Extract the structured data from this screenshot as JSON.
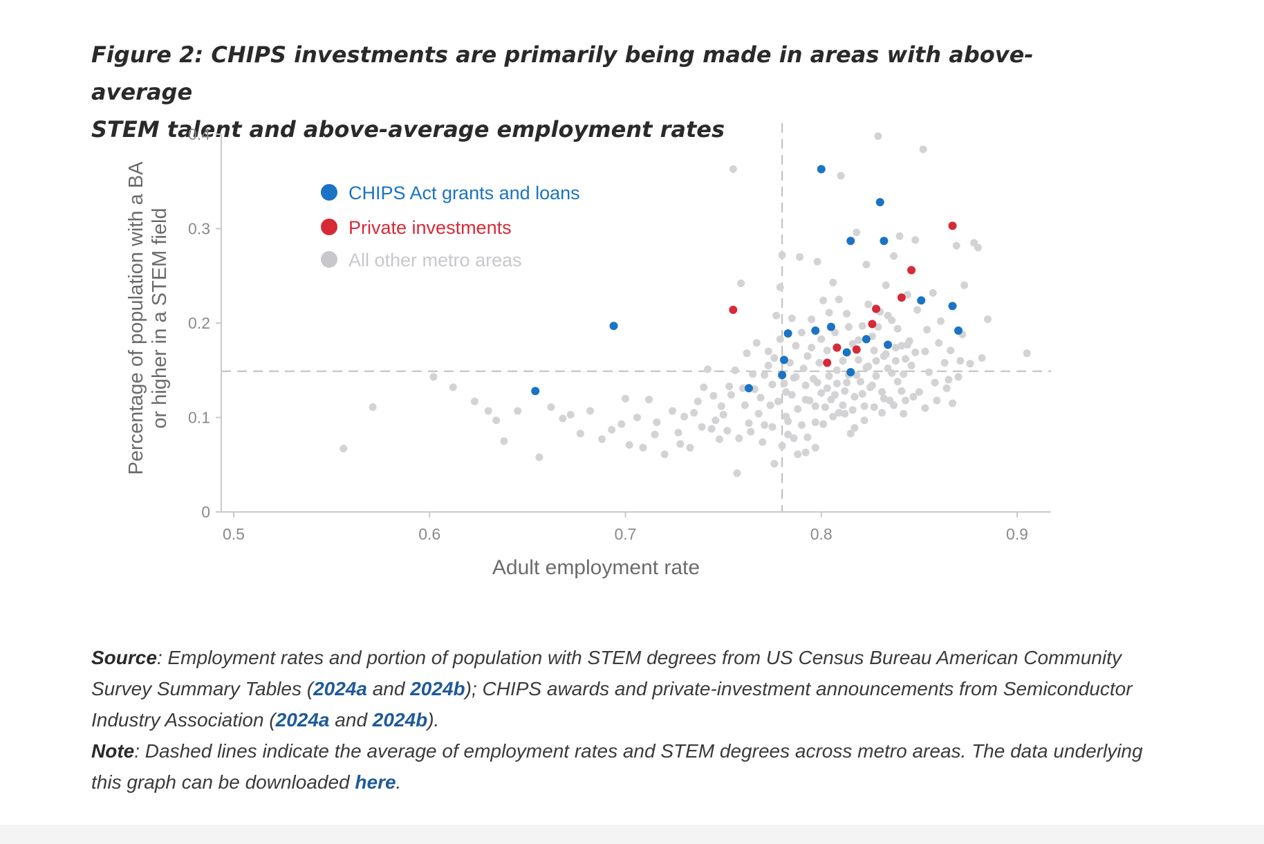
{
  "title_line1": "Figure 2: CHIPS investments are primarily being made in areas with above-average",
  "title_line2": "STEM talent and above-average employment rates",
  "chart_data": {
    "type": "scatter",
    "xlabel": "Adult employment rate",
    "ylabel_line1": "Percentage of population with a BA",
    "ylabel_line2": "or higher in a STEM field",
    "xlim": [
      0.495,
      0.92
    ],
    "ylim": [
      0,
      0.4
    ],
    "x_ticks": [
      0.5,
      0.6,
      0.7,
      0.8,
      0.9
    ],
    "x_tick_labels": [
      "0.5",
      "0.6",
      "0.7",
      "0.8",
      "0.9"
    ],
    "y_ticks": [
      0,
      0.1,
      0.2,
      0.3,
      0.4
    ],
    "y_tick_labels": [
      "0",
      "0.1",
      "0.2",
      "0.3",
      "0.4"
    ],
    "avg_x": 0.78,
    "avg_y": 0.149,
    "legend_position": "top-left",
    "series": [
      {
        "name": "CHIPS Act grants and loans",
        "color": "#1a73c4",
        "points": [
          [
            0.654,
            0.128
          ],
          [
            0.694,
            0.197
          ],
          [
            0.763,
            0.131
          ],
          [
            0.78,
            0.145
          ],
          [
            0.781,
            0.161
          ],
          [
            0.783,
            0.189
          ],
          [
            0.797,
            0.192
          ],
          [
            0.8,
            0.363
          ],
          [
            0.805,
            0.196
          ],
          [
            0.813,
            0.169
          ],
          [
            0.815,
            0.148
          ],
          [
            0.815,
            0.287
          ],
          [
            0.823,
            0.183
          ],
          [
            0.83,
            0.328
          ],
          [
            0.832,
            0.287
          ],
          [
            0.834,
            0.177
          ],
          [
            0.851,
            0.224
          ],
          [
            0.867,
            0.218
          ],
          [
            0.87,
            0.192
          ]
        ]
      },
      {
        "name": "Private investments",
        "color": "#d62a36",
        "points": [
          [
            0.755,
            0.214
          ],
          [
            0.803,
            0.158
          ],
          [
            0.808,
            0.174
          ],
          [
            0.818,
            0.172
          ],
          [
            0.826,
            0.199
          ],
          [
            0.828,
            0.215
          ],
          [
            0.841,
            0.227
          ],
          [
            0.846,
            0.256
          ],
          [
            0.867,
            0.303
          ]
        ]
      },
      {
        "name": "All other metro areas",
        "color": "#d3d3d6",
        "points": [
          [
            0.556,
            0.067
          ],
          [
            0.571,
            0.111
          ],
          [
            0.602,
            0.143
          ],
          [
            0.612,
            0.132
          ],
          [
            0.623,
            0.117
          ],
          [
            0.63,
            0.107
          ],
          [
            0.634,
            0.097
          ],
          [
            0.638,
            0.075
          ],
          [
            0.645,
            0.107
          ],
          [
            0.656,
            0.058
          ],
          [
            0.662,
            0.111
          ],
          [
            0.668,
            0.099
          ],
          [
            0.672,
            0.103
          ],
          [
            0.677,
            0.083
          ],
          [
            0.682,
            0.107
          ],
          [
            0.688,
            0.077
          ],
          [
            0.693,
            0.087
          ],
          [
            0.698,
            0.093
          ],
          [
            0.702,
            0.071
          ],
          [
            0.706,
            0.1
          ],
          [
            0.709,
            0.068
          ],
          [
            0.712,
            0.119
          ],
          [
            0.716,
            0.095
          ],
          [
            0.72,
            0.061
          ],
          [
            0.724,
            0.107
          ],
          [
            0.727,
            0.084
          ],
          [
            0.73,
            0.101
          ],
          [
            0.733,
            0.068
          ],
          [
            0.737,
            0.117
          ],
          [
            0.739,
            0.09
          ],
          [
            0.742,
            0.151
          ],
          [
            0.745,
            0.123
          ],
          [
            0.748,
            0.077
          ],
          [
            0.75,
            0.103
          ],
          [
            0.753,
            0.133
          ],
          [
            0.755,
            0.363
          ],
          [
            0.757,
            0.041
          ],
          [
            0.759,
            0.242
          ],
          [
            0.761,
            0.113
          ],
          [
            0.763,
            0.094
          ],
          [
            0.765,
            0.146
          ],
          [
            0.767,
            0.179
          ],
          [
            0.769,
            0.121
          ],
          [
            0.771,
            0.092
          ],
          [
            0.773,
            0.17
          ],
          [
            0.775,
            0.135
          ],
          [
            0.776,
            0.051
          ],
          [
            0.777,
            0.208
          ],
          [
            0.778,
            0.117
          ],
          [
            0.779,
            0.238
          ],
          [
            0.78,
            0.272
          ],
          [
            0.781,
            0.136
          ],
          [
            0.782,
            0.101
          ],
          [
            0.783,
            0.082
          ],
          [
            0.784,
            0.158
          ],
          [
            0.785,
            0.124
          ],
          [
            0.786,
            0.142
          ],
          [
            0.787,
            0.176
          ],
          [
            0.788,
            0.109
          ],
          [
            0.789,
            0.27
          ],
          [
            0.79,
            0.092
          ],
          [
            0.791,
            0.152
          ],
          [
            0.792,
            0.134
          ],
          [
            0.793,
            0.165
          ],
          [
            0.794,
            0.118
          ],
          [
            0.795,
            0.204
          ],
          [
            0.796,
            0.141
          ],
          [
            0.797,
            0.095
          ],
          [
            0.798,
            0.265
          ],
          [
            0.799,
            0.158
          ],
          [
            0.8,
            0.126
          ],
          [
            0.801,
            0.224
          ],
          [
            0.802,
            0.111
          ],
          [
            0.803,
            0.171
          ],
          [
            0.804,
            0.144
          ],
          [
            0.805,
            0.119
          ],
          [
            0.806,
            0.243
          ],
          [
            0.807,
            0.19
          ],
          [
            0.808,
            0.136
          ],
          [
            0.809,
            0.105
          ],
          [
            0.81,
            0.356
          ],
          [
            0.811,
            0.16
          ],
          [
            0.812,
            0.128
          ],
          [
            0.813,
            0.21
          ],
          [
            0.814,
            0.145
          ],
          [
            0.815,
            0.083
          ],
          [
            0.816,
            0.178
          ],
          [
            0.817,
            0.122
          ],
          [
            0.818,
            0.296
          ],
          [
            0.819,
            0.161
          ],
          [
            0.82,
            0.138
          ],
          [
            0.821,
            0.197
          ],
          [
            0.822,
            0.112
          ],
          [
            0.823,
            0.262
          ],
          [
            0.824,
            0.154
          ],
          [
            0.825,
            0.132
          ],
          [
            0.826,
            0.186
          ],
          [
            0.827,
            0.171
          ],
          [
            0.828,
            0.144
          ],
          [
            0.829,
            0.398
          ],
          [
            0.83,
            0.212
          ],
          [
            0.831,
            0.127
          ],
          [
            0.832,
            0.165
          ],
          [
            0.833,
            0.24
          ],
          [
            0.834,
            0.152
          ],
          [
            0.835,
            0.118
          ],
          [
            0.836,
            0.203
          ],
          [
            0.837,
            0.271
          ],
          [
            0.838,
            0.16
          ],
          [
            0.839,
            0.138
          ],
          [
            0.84,
            0.292
          ],
          [
            0.841,
            0.176
          ],
          [
            0.842,
            0.146
          ],
          [
            0.843,
            0.118
          ],
          [
            0.844,
            0.23
          ],
          [
            0.845,
            0.181
          ],
          [
            0.846,
            0.155
          ],
          [
            0.848,
            0.288
          ],
          [
            0.85,
            0.127
          ],
          [
            0.852,
            0.384
          ],
          [
            0.853,
            0.17
          ],
          [
            0.855,
            0.148
          ],
          [
            0.857,
            0.232
          ],
          [
            0.859,
            0.118
          ],
          [
            0.861,
            0.202
          ],
          [
            0.863,
            0.158
          ],
          [
            0.865,
            0.14
          ],
          [
            0.867,
            0.115
          ],
          [
            0.869,
            0.282
          ],
          [
            0.871,
            0.16
          ],
          [
            0.873,
            0.24
          ],
          [
            0.876,
            0.157
          ],
          [
            0.878,
            0.285
          ],
          [
            0.88,
            0.28
          ],
          [
            0.882,
            0.163
          ],
          [
            0.885,
            0.204
          ],
          [
            0.905,
            0.168
          ],
          [
            0.7,
            0.12
          ],
          [
            0.715,
            0.082
          ],
          [
            0.728,
            0.072
          ],
          [
            0.735,
            0.105
          ],
          [
            0.746,
            0.097
          ],
          [
            0.752,
            0.086
          ],
          [
            0.76,
            0.131
          ],
          [
            0.768,
            0.104
          ],
          [
            0.774,
            0.113
          ],
          [
            0.783,
            0.096
          ],
          [
            0.788,
            0.061
          ],
          [
            0.793,
            0.079
          ],
          [
            0.797,
            0.112
          ],
          [
            0.801,
            0.093
          ],
          [
            0.806,
            0.101
          ],
          [
            0.811,
            0.113
          ],
          [
            0.816,
            0.108
          ],
          [
            0.821,
            0.125
          ],
          [
            0.826,
            0.134
          ],
          [
            0.831,
            0.105
          ],
          [
            0.836,
            0.147
          ],
          [
            0.841,
            0.128
          ],
          [
            0.847,
            0.122
          ],
          [
            0.853,
            0.11
          ],
          [
            0.858,
            0.137
          ],
          [
            0.864,
            0.131
          ],
          [
            0.87,
            0.143
          ],
          [
            0.773,
            0.155
          ],
          [
            0.779,
            0.183
          ],
          [
            0.785,
            0.205
          ],
          [
            0.79,
            0.19
          ],
          [
            0.795,
            0.174
          ],
          [
            0.8,
            0.183
          ],
          [
            0.804,
            0.211
          ],
          [
            0.809,
            0.225
          ],
          [
            0.814,
            0.196
          ],
          [
            0.819,
            0.182
          ],
          [
            0.824,
            0.22
          ],
          [
            0.829,
            0.196
          ],
          [
            0.834,
            0.208
          ],
          [
            0.839,
            0.194
          ],
          [
            0.844,
            0.177
          ],
          [
            0.849,
            0.214
          ],
          [
            0.854,
            0.193
          ],
          [
            0.86,
            0.179
          ],
          [
            0.866,
            0.171
          ],
          [
            0.872,
            0.188
          ],
          [
            0.756,
            0.15
          ],
          [
            0.762,
            0.168
          ],
          [
            0.766,
            0.13
          ],
          [
            0.771,
            0.145
          ],
          [
            0.776,
            0.163
          ],
          [
            0.782,
            0.127
          ],
          [
            0.787,
            0.143
          ],
          [
            0.792,
            0.119
          ],
          [
            0.798,
            0.137
          ],
          [
            0.803,
            0.131
          ],
          [
            0.808,
            0.15
          ],
          [
            0.813,
            0.137
          ],
          [
            0.818,
            0.145
          ],
          [
            0.823,
            0.153
          ],
          [
            0.828,
            0.16
          ],
          [
            0.833,
            0.167
          ],
          [
            0.838,
            0.174
          ],
          [
            0.843,
            0.162
          ],
          [
            0.848,
            0.169
          ],
          [
            0.74,
            0.132
          ],
          [
            0.744,
            0.088
          ],
          [
            0.749,
            0.112
          ],
          [
            0.754,
            0.124
          ],
          [
            0.758,
            0.078
          ],
          [
            0.764,
            0.085
          ],
          [
            0.77,
            0.074
          ],
          [
            0.775,
            0.09
          ],
          [
            0.78,
            0.07
          ],
          [
            0.786,
            0.078
          ],
          [
            0.792,
            0.063
          ],
          [
            0.797,
            0.068
          ],
          [
            0.807,
            0.124
          ],
          [
            0.812,
            0.104
          ],
          [
            0.817,
            0.089
          ],
          [
            0.822,
            0.097
          ],
          [
            0.827,
            0.111
          ],
          [
            0.832,
            0.12
          ],
          [
            0.837,
            0.113
          ],
          [
            0.842,
            0.104
          ]
        ]
      }
    ]
  },
  "notes": {
    "source_label": "Source",
    "source_text_1": ": Employment rates and portion of population with STEM degrees from US Census Bureau American Community Survey Summary Tables (",
    "link_2024a_acs": "2024a",
    "and_1": " and ",
    "link_2024b_acs": "2024b",
    "source_text_2": "); CHIPS awards and private-investment announcements from Semiconductor Industry Association (",
    "link_2024a_sia": "2024a",
    "and_2": " and ",
    "link_2024b_sia": "2024b",
    "source_text_3": ").",
    "note_label": "Note",
    "note_text": ": Dashed lines indicate the average of employment rates and STEM degrees across metro areas. The data underlying this graph can be downloaded ",
    "link_here": "here",
    "note_end": "."
  }
}
